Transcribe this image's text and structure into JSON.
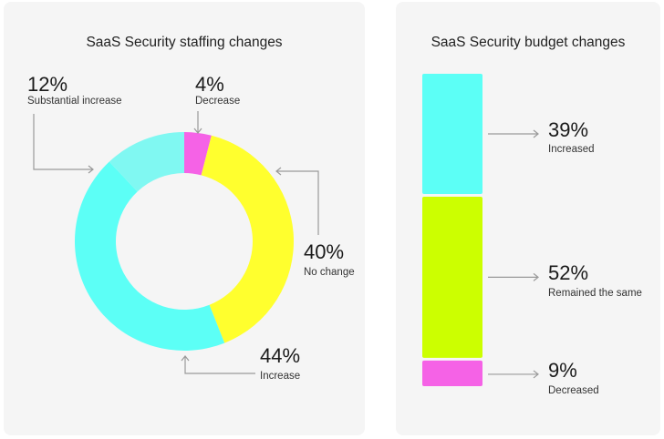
{
  "chart_data": [
    {
      "type": "pie",
      "variant": "donut",
      "title": "SaaS Security staffing changes",
      "categories": [
        "Decrease",
        "No change",
        "Increase",
        "Substantial increase"
      ],
      "values": [
        4,
        40,
        44,
        12
      ],
      "labels": [
        "4%",
        "40%",
        "44%",
        "12%"
      ],
      "colors": [
        "#f562e6",
        "#ffff2e",
        "#5cfff6",
        "#80f8f2"
      ],
      "unit": "%"
    },
    {
      "type": "bar",
      "variant": "stacked-vertical",
      "title": "SaaS Security budget changes",
      "categories": [
        "Increased",
        "Remained the same",
        "Decreased"
      ],
      "values": [
        39,
        52,
        9
      ],
      "labels": [
        "39%",
        "52%",
        "9%"
      ],
      "colors": [
        "#5cfff6",
        "#ccff00",
        "#f562e6"
      ],
      "unit": "%"
    }
  ]
}
